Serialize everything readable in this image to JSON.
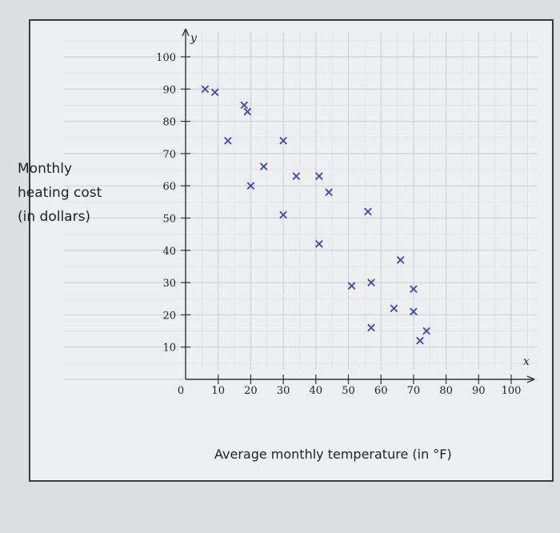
{
  "chart_data": {
    "type": "scatter",
    "ylabel": "Monthly\nheating cost\n(in dollars)",
    "xlabel": "Average monthly temperature (in °F)",
    "x_var": "x",
    "y_var": "y",
    "xlim": [
      0,
      100
    ],
    "ylim": [
      0,
      100
    ],
    "x_ticks": [
      10,
      20,
      30,
      40,
      50,
      60,
      70,
      80,
      90,
      100
    ],
    "y_ticks": [
      10,
      20,
      30,
      40,
      50,
      60,
      70,
      80,
      90,
      100
    ],
    "origin_label": "0",
    "grid": true,
    "marker": "x",
    "marker_color": "#3b45c9",
    "points": [
      {
        "x": 6,
        "y": 90
      },
      {
        "x": 9,
        "y": 89
      },
      {
        "x": 13,
        "y": 74
      },
      {
        "x": 18,
        "y": 85
      },
      {
        "x": 19,
        "y": 83
      },
      {
        "x": 20,
        "y": 60
      },
      {
        "x": 24,
        "y": 66
      },
      {
        "x": 30,
        "y": 74
      },
      {
        "x": 30,
        "y": 51
      },
      {
        "x": 34,
        "y": 63
      },
      {
        "x": 41,
        "y": 63
      },
      {
        "x": 41,
        "y": 42
      },
      {
        "x": 44,
        "y": 58
      },
      {
        "x": 51,
        "y": 29
      },
      {
        "x": 56,
        "y": 52
      },
      {
        "x": 57,
        "y": 30
      },
      {
        "x": 57,
        "y": 16
      },
      {
        "x": 64,
        "y": 22
      },
      {
        "x": 66,
        "y": 37
      },
      {
        "x": 70,
        "y": 28
      },
      {
        "x": 70,
        "y": 21
      },
      {
        "x": 72,
        "y": 12
      },
      {
        "x": 74,
        "y": 15
      }
    ]
  }
}
